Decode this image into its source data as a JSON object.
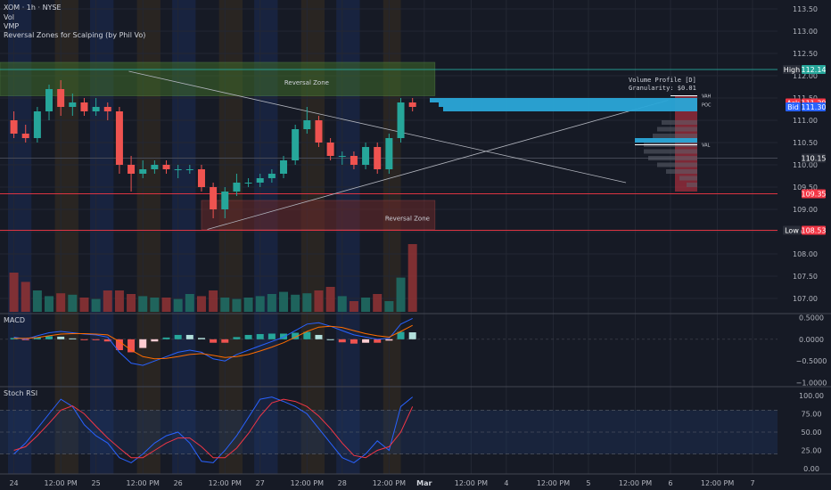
{
  "header": {
    "symbol": "XOM · 1h · NYSE",
    "indicators": [
      "Vol",
      "VMP",
      "Reversal Zones for Scalping (by Phil Vo)"
    ]
  },
  "colors": {
    "bg": "#161a25",
    "grid": "#232733",
    "up": "#26a69a",
    "down": "#ef5350",
    "session_blue": "#1b2b55",
    "session_orange": "#3a3020",
    "zone_green": "#3f6b2a",
    "zone_red": "#6b2a2a",
    "macd": "#2962ff",
    "signal": "#ff6d00",
    "stoch_k": "#2962ff",
    "stoch_d": "#f23645",
    "vp_bar": "#2aa6d8",
    "vp_red": "#a12d3c",
    "vp_gray": "#5d606b"
  },
  "chart_data": {
    "type": "candlestick",
    "symbol": "XOM",
    "interval": "1h",
    "exchange": "NYSE",
    "x_axis": {
      "ticks": [
        "24",
        "12:00 PM",
        "25",
        "12:00 PM",
        "26",
        "12:00 PM",
        "27",
        "12:00 PM",
        "28",
        "12:00 PM",
        "Mar",
        "12:00 PM",
        "4",
        "12:00 PM",
        "5",
        "12:00 PM",
        "6",
        "12:00 PM",
        "7"
      ],
      "tick_positions": [
        0.5,
        4.5,
        7.5,
        11.5,
        14.5,
        18.5,
        21.5,
        25.5,
        28.5,
        32.5,
        35.5,
        39.5,
        42.5,
        46.5,
        49.5,
        53.5,
        56.5,
        60.5,
        63.5
      ]
    },
    "y_axis": {
      "ylim": [
        106.7,
        113.7
      ],
      "ticks": [
        107.0,
        107.5,
        108.0,
        108.5,
        109.0,
        109.5,
        110.0,
        110.5,
        111.0,
        111.5,
        112.0,
        112.5,
        113.0,
        113.5
      ]
    },
    "sessions": [
      {
        "start": 0,
        "end": 2,
        "kind": "blue"
      },
      {
        "start": 4,
        "end": 6,
        "kind": "orange"
      },
      {
        "start": 7,
        "end": 9,
        "kind": "blue"
      },
      {
        "start": 11,
        "end": 13,
        "kind": "orange"
      },
      {
        "start": 14,
        "end": 16,
        "kind": "blue"
      },
      {
        "start": 18,
        "end": 20,
        "kind": "orange"
      },
      {
        "start": 21,
        "end": 23,
        "kind": "blue"
      },
      {
        "start": 25,
        "end": 27,
        "kind": "orange"
      },
      {
        "start": 28,
        "end": 30,
        "kind": "blue"
      },
      {
        "start": 32,
        "end": 33.5,
        "kind": "orange"
      }
    ],
    "candles": [
      {
        "o": 111.0,
        "h": 111.2,
        "l": 110.6,
        "c": 110.7
      },
      {
        "o": 110.7,
        "h": 110.9,
        "l": 110.5,
        "c": 110.6
      },
      {
        "o": 110.6,
        "h": 111.3,
        "l": 110.5,
        "c": 111.2
      },
      {
        "o": 111.2,
        "h": 111.8,
        "l": 111.0,
        "c": 111.7
      },
      {
        "o": 111.7,
        "h": 111.9,
        "l": 111.1,
        "c": 111.3
      },
      {
        "o": 111.3,
        "h": 111.6,
        "l": 111.1,
        "c": 111.4
      },
      {
        "o": 111.4,
        "h": 111.5,
        "l": 111.1,
        "c": 111.2
      },
      {
        "o": 111.2,
        "h": 111.5,
        "l": 111.1,
        "c": 111.3
      },
      {
        "o": 111.3,
        "h": 111.4,
        "l": 111.0,
        "c": 111.2
      },
      {
        "o": 111.2,
        "h": 111.3,
        "l": 109.8,
        "c": 110.0
      },
      {
        "o": 110.0,
        "h": 110.2,
        "l": 109.4,
        "c": 109.8
      },
      {
        "o": 109.8,
        "h": 110.1,
        "l": 109.7,
        "c": 109.9
      },
      {
        "o": 109.9,
        "h": 110.1,
        "l": 109.8,
        "c": 110.0
      },
      {
        "o": 110.0,
        "h": 110.1,
        "l": 109.8,
        "c": 109.9
      },
      {
        "o": 109.9,
        "h": 110.0,
        "l": 109.7,
        "c": 109.9
      },
      {
        "o": 109.9,
        "h": 110.0,
        "l": 109.8,
        "c": 109.9
      },
      {
        "o": 109.9,
        "h": 110.0,
        "l": 109.4,
        "c": 109.5
      },
      {
        "o": 109.5,
        "h": 109.6,
        "l": 108.8,
        "c": 109.0
      },
      {
        "o": 109.0,
        "h": 109.5,
        "l": 108.8,
        "c": 109.4
      },
      {
        "o": 109.4,
        "h": 109.8,
        "l": 109.3,
        "c": 109.6
      },
      {
        "o": 109.6,
        "h": 109.7,
        "l": 109.5,
        "c": 109.6
      },
      {
        "o": 109.6,
        "h": 109.8,
        "l": 109.5,
        "c": 109.7
      },
      {
        "o": 109.7,
        "h": 109.9,
        "l": 109.6,
        "c": 109.8
      },
      {
        "o": 109.8,
        "h": 110.2,
        "l": 109.7,
        "c": 110.1
      },
      {
        "o": 110.1,
        "h": 110.9,
        "l": 110.0,
        "c": 110.8
      },
      {
        "o": 110.8,
        "h": 111.3,
        "l": 110.7,
        "c": 111.0
      },
      {
        "o": 111.0,
        "h": 111.1,
        "l": 110.4,
        "c": 110.5
      },
      {
        "o": 110.5,
        "h": 110.6,
        "l": 110.1,
        "c": 110.2
      },
      {
        "o": 110.2,
        "h": 110.3,
        "l": 110.0,
        "c": 110.2
      },
      {
        "o": 110.2,
        "h": 110.3,
        "l": 109.9,
        "c": 110.0
      },
      {
        "o": 110.0,
        "h": 110.5,
        "l": 109.9,
        "c": 110.4
      },
      {
        "o": 110.4,
        "h": 110.5,
        "l": 109.8,
        "c": 109.9
      },
      {
        "o": 109.9,
        "h": 110.7,
        "l": 109.8,
        "c": 110.6
      },
      {
        "o": 110.6,
        "h": 111.5,
        "l": 110.5,
        "c": 111.4
      },
      {
        "o": 111.4,
        "h": 111.5,
        "l": 111.2,
        "c": 111.3
      }
    ],
    "volume": [
      0.55,
      0.42,
      0.3,
      0.22,
      0.26,
      0.24,
      0.2,
      0.18,
      0.3,
      0.3,
      0.25,
      0.22,
      0.2,
      0.2,
      0.18,
      0.25,
      0.22,
      0.3,
      0.2,
      0.18,
      0.2,
      0.22,
      0.25,
      0.28,
      0.24,
      0.26,
      0.3,
      0.35,
      0.22,
      0.15,
      0.2,
      0.25,
      0.15,
      0.48,
      0.95
    ],
    "reversal_zones": [
      {
        "label": "Reversal Zone",
        "from_bar": 0,
        "to_bar": 35.5,
        "y_low": 111.55,
        "y_high": 112.3,
        "kind": "green"
      },
      {
        "label": "Reversal Zone",
        "from_bar": 16.5,
        "to_bar": 35.5,
        "y_low": 108.55,
        "y_high": 109.2,
        "kind": "red"
      }
    ],
    "trendlines": [
      {
        "x1": 9.8,
        "y1": 112.1,
        "x2": 52.2,
        "y2": 109.6
      },
      {
        "x1": 16.5,
        "y1": 108.55,
        "x2": 55.8,
        "y2": 111.45
      }
    ],
    "levels": [
      {
        "label": "High",
        "value": 112.14,
        "text": "112.14",
        "color": "#26a69a"
      },
      {
        "label": "",
        "value": 111.39,
        "text": "111.39",
        "tag": "Ask",
        "color": "#f23645"
      },
      {
        "label": "",
        "value": 111.3,
        "text": "111.30",
        "tag": "Bid",
        "color": "#2962ff"
      },
      {
        "label": "",
        "value": 110.15,
        "text": "110.15",
        "color": "#2a2e39"
      },
      {
        "label": "",
        "value": 109.35,
        "text": "109.35",
        "color": "#f23645"
      },
      {
        "label": "Low",
        "value": 108.53,
        "text": "108.53",
        "color": "#f23645"
      }
    ],
    "volume_profile": {
      "title": "Volume Profile [D]",
      "granularity": "Granularity: $0.01",
      "vah_label": "VAH",
      "poc_label": "POC",
      "val_label": "VAL",
      "vah": 111.55,
      "poc": 111.35,
      "val": 110.45
    },
    "macd": {
      "label": "MACD",
      "ylim": [
        -1.05,
        0.55
      ],
      "ticks": [
        0.5,
        0.0,
        -0.5,
        -1.0
      ],
      "tick_labels": [
        "0.5000",
        "0.0000",
        "−0.5000",
        "−1.0000"
      ],
      "macd": [
        0.05,
        0.0,
        0.08,
        0.15,
        0.18,
        0.15,
        0.12,
        0.1,
        0.05,
        -0.3,
        -0.55,
        -0.6,
        -0.5,
        -0.4,
        -0.3,
        -0.25,
        -0.3,
        -0.45,
        -0.5,
        -0.35,
        -0.25,
        -0.15,
        -0.05,
        0.05,
        0.2,
        0.35,
        0.38,
        0.3,
        0.2,
        0.1,
        0.05,
        0.0,
        0.02,
        0.35,
        0.48
      ],
      "signal": [
        0.02,
        0.02,
        0.04,
        0.08,
        0.12,
        0.13,
        0.13,
        0.12,
        0.1,
        -0.05,
        -0.25,
        -0.4,
        -0.45,
        -0.44,
        -0.4,
        -0.35,
        -0.33,
        -0.37,
        -0.42,
        -0.4,
        -0.35,
        -0.27,
        -0.18,
        -0.08,
        0.05,
        0.18,
        0.28,
        0.3,
        0.27,
        0.2,
        0.13,
        0.08,
        0.05,
        0.18,
        0.32
      ]
    },
    "stoch_rsi": {
      "label": "Stoch RSI",
      "ylim": [
        0,
        100
      ],
      "ticks": [
        100,
        75,
        50,
        25,
        0
      ],
      "tick_labels": [
        "100.00",
        "75.00",
        "50.00",
        "25.00",
        "0.00"
      ],
      "k": [
        20,
        35,
        55,
        75,
        95,
        85,
        60,
        45,
        35,
        15,
        8,
        20,
        35,
        45,
        50,
        35,
        10,
        8,
        25,
        45,
        70,
        95,
        98,
        92,
        85,
        75,
        55,
        35,
        15,
        8,
        20,
        38,
        25,
        85,
        98
      ],
      "d": [
        25,
        30,
        45,
        62,
        80,
        86,
        75,
        58,
        42,
        28,
        15,
        15,
        25,
        35,
        42,
        42,
        30,
        15,
        15,
        28,
        48,
        72,
        90,
        95,
        92,
        85,
        72,
        55,
        35,
        18,
        15,
        25,
        30,
        50,
        85
      ]
    }
  }
}
